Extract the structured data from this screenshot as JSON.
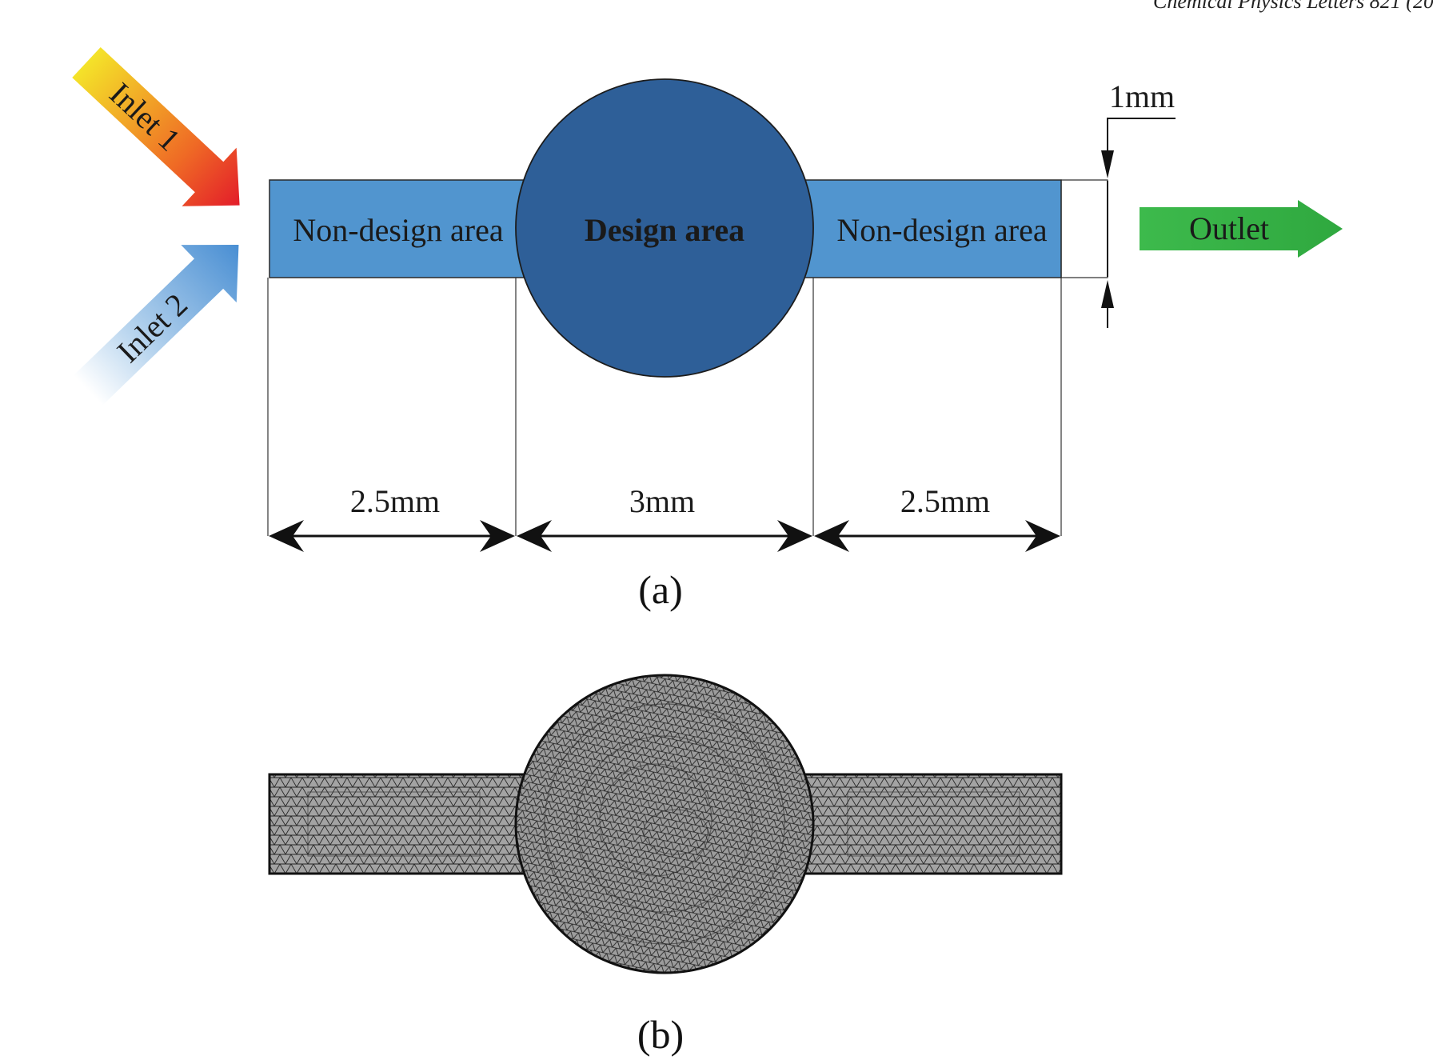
{
  "header": {
    "running_text": "Chemical Physics Letters 821 (20"
  },
  "figure_a": {
    "caption": "(a)",
    "left_region": {
      "label": "Non-design area"
    },
    "center_region": {
      "label": "Design area"
    },
    "right_region": {
      "label": "Non-design area"
    },
    "inlet1": {
      "label": "Inlet 1"
    },
    "inlet2": {
      "label": "Inlet 2"
    },
    "outlet": {
      "label": "Outlet"
    },
    "dimensions": {
      "left_length": "2.5mm",
      "center_diameter": "3mm",
      "right_length": "2.5mm",
      "channel_width": "1mm"
    }
  },
  "figure_b": {
    "caption": "(b)"
  },
  "colors": {
    "channel_fill": "#5195cf",
    "design_fill": "#2e5f98",
    "outlet_green": "#3cb44a",
    "inlet1_red": "#e8202a",
    "inlet1_yellow": "#f4e329",
    "inlet2_blue": "#4a8fd3",
    "mesh_fill": "#9a9a9a",
    "mesh_line": "#1a1a1a"
  }
}
